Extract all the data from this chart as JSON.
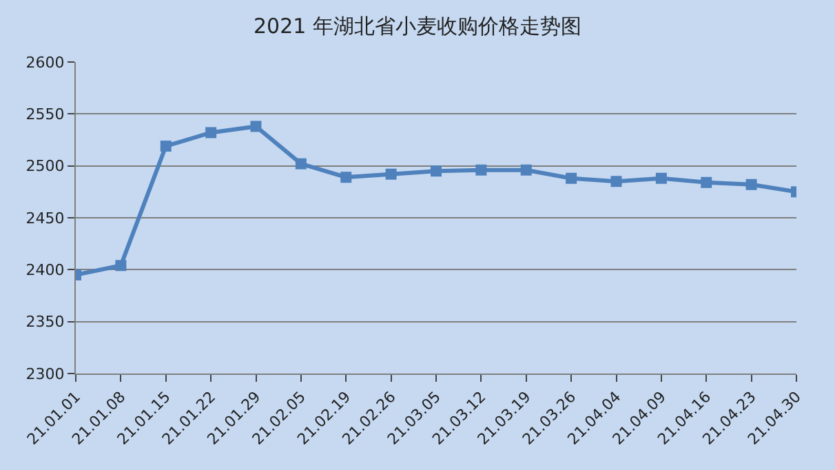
{
  "chart_data": {
    "type": "line",
    "title": "2021 年湖北省小麦收购价格走势图",
    "categories": [
      "21.01.01",
      "21.01.08",
      "21.01.15",
      "21.01.22",
      "21.01.29",
      "21.02.05",
      "21.02.19",
      "21.02.26",
      "21.03.05",
      "21.03.12",
      "21.03.19",
      "21.03.26",
      "21.04.04",
      "21.04.09",
      "21.04.16",
      "21.04.23",
      "21.04.30"
    ],
    "series": [
      {
        "color": "#4f81bd",
        "values": [
          2395,
          2404,
          2519,
          2532,
          2538,
          2502,
          2489,
          2492,
          2495,
          2496,
          2496,
          2488,
          2485,
          2488,
          2484,
          2482,
          2475
        ]
      }
    ],
    "ylim": [
      2300,
      2600
    ],
    "yticks": [
      2300,
      2350,
      2400,
      2450,
      2500,
      2550,
      2600
    ],
    "grid": "y",
    "marker": "square",
    "line_style": "solid"
  }
}
